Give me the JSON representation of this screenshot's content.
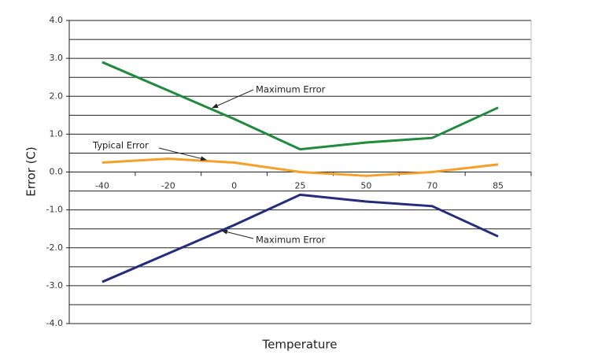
{
  "chart_data": {
    "type": "line",
    "x_label": "Temperature",
    "y_label": "Error (C)",
    "categories": [
      "-40",
      "-20",
      "0",
      "25",
      "50",
      "70",
      "85"
    ],
    "series": [
      {
        "name": "Maximum Error",
        "color": "#218a3f",
        "values": [
          2.9,
          2.15,
          1.4,
          0.6,
          0.78,
          0.9,
          1.7
        ]
      },
      {
        "name": "Typical Error",
        "color": "#f4a02a",
        "values": [
          0.25,
          0.35,
          0.25,
          0,
          -0.1,
          0,
          0.2
        ]
      },
      {
        "name": "Maximum Error",
        "color": "#262c7c",
        "values": [
          -2.9,
          -2.15,
          -1.4,
          -0.6,
          -0.78,
          -0.9,
          -1.7
        ]
      }
    ],
    "ylim": [
      -4,
      4
    ],
    "yticks": [
      {
        "value": 4,
        "label": "4.0"
      },
      {
        "value": 3,
        "label": "3.0"
      },
      {
        "value": 2,
        "label": "2.0"
      },
      {
        "value": 1,
        "label": "1.0"
      },
      {
        "value": 0,
        "label": "0.0"
      },
      {
        "value": -1,
        "label": "-1.0"
      },
      {
        "value": -2,
        "label": "-2.0"
      },
      {
        "value": -3,
        "label": "-3.0"
      },
      {
        "value": -4,
        "label": "-4.0"
      }
    ],
    "minor_yticks": [
      3.5,
      2.5,
      1.5,
      0.5,
      -0.5,
      -1.5,
      -2.5,
      -3.5
    ],
    "grid": true
  }
}
